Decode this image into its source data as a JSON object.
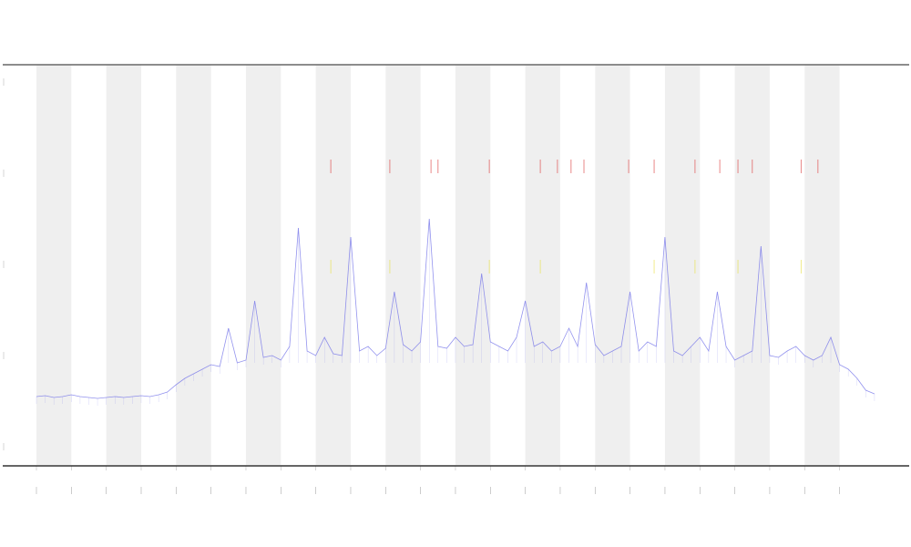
{
  "chart_data": {
    "type": "line",
    "title": "",
    "xlabel": "",
    "ylabel": "",
    "xlim": [
      0,
      24.8
    ],
    "ylim": [
      -0.2,
      4.18
    ],
    "x_ticks": [
      0,
      1,
      2,
      3,
      4,
      5,
      6,
      7,
      8,
      9,
      10,
      11,
      12,
      13,
      14,
      15,
      16,
      17,
      18,
      19,
      20,
      21,
      22,
      23
    ],
    "y_ticks": [
      0,
      1,
      2,
      3,
      4
    ],
    "grid": false,
    "shaded_bands": [
      [
        0,
        1
      ],
      [
        2,
        3
      ],
      [
        4,
        5
      ],
      [
        6,
        7
      ],
      [
        8,
        9
      ],
      [
        10,
        11
      ],
      [
        12,
        13
      ],
      [
        14,
        15
      ],
      [
        16,
        17
      ],
      [
        18,
        19
      ],
      [
        20,
        21
      ],
      [
        22,
        23
      ]
    ],
    "colors": {
      "line": "#6f6fe8",
      "band": "#efefef",
      "high_marker": "#e05555",
      "mid_marker": "#e8e040",
      "axis": "#444444"
    },
    "series": [
      {
        "x_start": 0,
        "x_step": 0.25,
        "values": [
          0.55,
          0.56,
          0.54,
          0.55,
          0.57,
          0.55,
          0.54,
          0.53,
          0.54,
          0.55,
          0.54,
          0.55,
          0.56,
          0.55,
          0.57,
          0.6,
          0.68,
          0.75,
          0.8,
          0.85,
          0.9,
          0.88,
          1.3,
          0.92,
          0.95,
          1.6,
          0.98,
          1.0,
          0.95,
          1.1,
          2.4,
          1.05,
          1.0,
          1.2,
          1.02,
          1.0,
          2.3,
          1.05,
          1.1,
          1.0,
          1.08,
          1.7,
          1.12,
          1.05,
          1.15,
          2.5,
          1.1,
          1.08,
          1.2,
          1.1,
          1.12,
          1.9,
          1.15,
          1.1,
          1.05,
          1.2,
          1.6,
          1.1,
          1.15,
          1.05,
          1.1,
          1.3,
          1.1,
          1.8,
          1.12,
          1.0,
          1.05,
          1.1,
          1.7,
          1.05,
          1.15,
          1.1,
          2.3,
          1.05,
          1.0,
          1.1,
          1.2,
          1.05,
          1.7,
          1.1,
          0.95,
          1.0,
          1.05,
          2.2,
          1.0,
          0.98,
          1.05,
          1.1,
          1.0,
          0.95,
          1.0,
          1.2,
          0.9,
          0.85,
          0.75,
          0.62,
          0.58
        ]
      }
    ],
    "high_markers": {
      "y_range": [
        3.0,
        3.15
      ],
      "x": [
        8.43,
        10.12,
        11.3,
        11.5,
        12.97,
        14.43,
        14.92,
        15.31,
        15.68,
        16.96,
        17.69,
        18.86,
        19.57,
        20.09,
        20.5,
        21.9,
        22.38
      ]
    },
    "mid_markers": {
      "y_range": [
        1.9,
        2.05
      ],
      "x": [
        8.43,
        10.12,
        12.97,
        14.43,
        17.69,
        18.86,
        20.09,
        21.9
      ]
    }
  }
}
